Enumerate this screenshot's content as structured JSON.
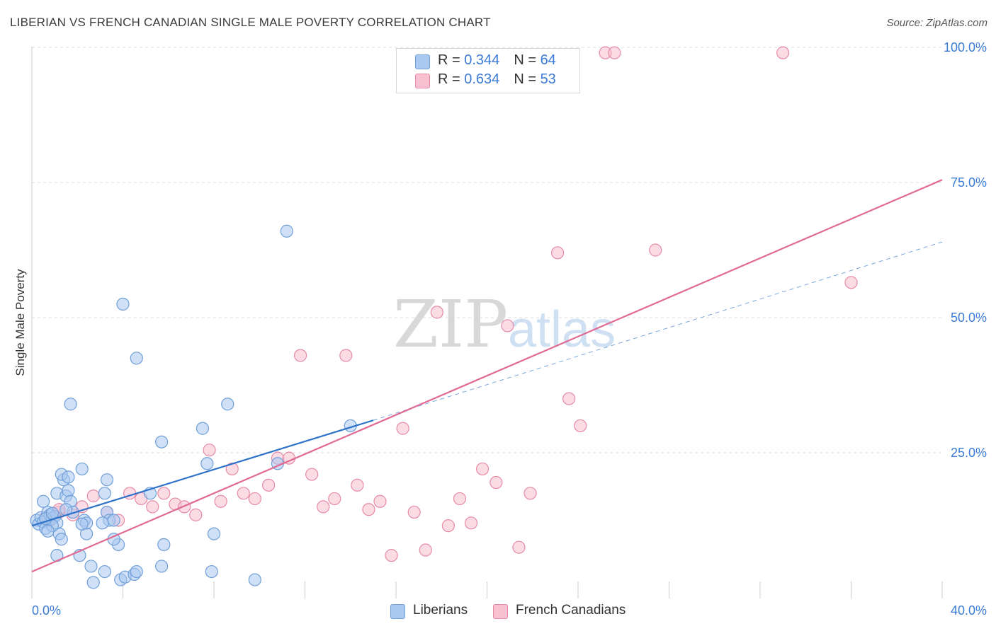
{
  "header": {
    "title": "LIBERIAN VS FRENCH CANADIAN SINGLE MALE POVERTY CORRELATION CHART",
    "source": "Source: ZipAtlas.com"
  },
  "legend_top": {
    "rows": [
      {
        "r_label": "R = ",
        "r_value": "0.344",
        "n_label": "N = ",
        "n_value": "64"
      },
      {
        "r_label": "R = ",
        "r_value": "0.634",
        "n_label": "N = ",
        "n_value": "53"
      }
    ]
  },
  "legend_bottom": {
    "liberians": "Liberians",
    "french_canadians": "French Canadians"
  },
  "watermark": {
    "zip": "ZIP",
    "atlas": "atlas"
  },
  "colors": {
    "liberians_fill": "#a9c9f0",
    "liberians_stroke": "#6f9fd8",
    "liberians_line": "#2f73c9",
    "french_fill": "#f8c0d0",
    "french_stroke": "#e58aa6",
    "french_line": "#e06a93",
    "tick_label": "#3a7bd5",
    "grid": "#dcdcdc"
  },
  "chart_data": {
    "type": "scatter",
    "title": "LIBERIAN VS FRENCH CANADIAN SINGLE MALE POVERTY CORRELATION CHART",
    "xlabel": "",
    "ylabel": "Single Male Poverty",
    "xlim": [
      0,
      40
    ],
    "ylim": [
      0,
      102
    ],
    "x_tick_labels": [
      "0.0%",
      "40.0%"
    ],
    "y_ticks": [
      25,
      50,
      75,
      100
    ],
    "y_tick_labels": [
      "25.0%",
      "50.0%",
      "75.0%",
      "100.0%"
    ],
    "grid": true,
    "legend_position": "top-center",
    "series": [
      {
        "name": "Liberians",
        "r": 0.344,
        "n": 64,
        "trend": {
          "x": [
            0,
            15
          ],
          "y": [
            11.5,
            31.0
          ]
        },
        "trend_dashed_extension": {
          "x": [
            15,
            40
          ],
          "y": [
            31.0,
            64.0
          ]
        },
        "points": [
          [
            0.2,
            12.5
          ],
          [
            0.3,
            11.8
          ],
          [
            0.4,
            13.0
          ],
          [
            0.5,
            12.2
          ],
          [
            0.6,
            11.0
          ],
          [
            0.7,
            14.0
          ],
          [
            0.8,
            13.5
          ],
          [
            0.9,
            12.8
          ],
          [
            1.0,
            13.2
          ],
          [
            1.1,
            12.0
          ],
          [
            1.2,
            10.0
          ],
          [
            1.3,
            9.0
          ],
          [
            0.5,
            16.0
          ],
          [
            1.1,
            17.5
          ],
          [
            1.4,
            20.0
          ],
          [
            1.5,
            17.0
          ],
          [
            1.6,
            18.0
          ],
          [
            1.7,
            16.0
          ],
          [
            1.8,
            14.0
          ],
          [
            1.3,
            21.0
          ],
          [
            1.6,
            20.5
          ],
          [
            2.2,
            22.0
          ],
          [
            2.3,
            12.5
          ],
          [
            2.4,
            10.0
          ],
          [
            2.1,
            6.0
          ],
          [
            1.1,
            6.0
          ],
          [
            2.6,
            4.0
          ],
          [
            2.7,
            1.0
          ],
          [
            3.2,
            17.5
          ],
          [
            3.3,
            14.0
          ],
          [
            3.4,
            12.5
          ],
          [
            3.1,
            12.0
          ],
          [
            3.2,
            3.0
          ],
          [
            3.9,
            1.5
          ],
          [
            4.1,
            2.0
          ],
          [
            4.5,
            2.5
          ],
          [
            3.8,
            8.0
          ],
          [
            3.6,
            9.0
          ],
          [
            3.3,
            20.0
          ],
          [
            1.7,
            34.0
          ],
          [
            4.0,
            52.5
          ],
          [
            4.6,
            42.5
          ],
          [
            5.2,
            17.5
          ],
          [
            5.7,
            27.0
          ],
          [
            5.8,
            8.0
          ],
          [
            5.7,
            4.0
          ],
          [
            7.5,
            29.5
          ],
          [
            7.7,
            23.0
          ],
          [
            7.9,
            3.0
          ],
          [
            8.0,
            10.0
          ],
          [
            8.6,
            34.0
          ],
          [
            9.8,
            1.5
          ],
          [
            10.8,
            23.0
          ],
          [
            11.2,
            66.0
          ],
          [
            14.0,
            30.0
          ],
          [
            0.9,
            11.5
          ],
          [
            0.6,
            12.8
          ],
          [
            2.4,
            12.0
          ],
          [
            1.5,
            14.5
          ],
          [
            2.2,
            11.8
          ],
          [
            0.7,
            10.5
          ],
          [
            0.9,
            13.8
          ],
          [
            3.6,
            12.5
          ],
          [
            4.6,
            3.0
          ]
        ]
      },
      {
        "name": "French Canadians",
        "r": 0.634,
        "n": 53,
        "trend": {
          "x": [
            0,
            40
          ],
          "y": [
            3.0,
            75.5
          ]
        },
        "points": [
          [
            0.6,
            13.0
          ],
          [
            0.8,
            12.5
          ],
          [
            1.2,
            14.0
          ],
          [
            1.8,
            13.5
          ],
          [
            2.2,
            15.0
          ],
          [
            2.7,
            17.0
          ],
          [
            3.3,
            14.0
          ],
          [
            3.8,
            12.5
          ],
          [
            4.3,
            17.5
          ],
          [
            4.8,
            16.5
          ],
          [
            5.3,
            15.0
          ],
          [
            5.8,
            17.5
          ],
          [
            6.3,
            15.5
          ],
          [
            6.7,
            15.0
          ],
          [
            7.2,
            13.5
          ],
          [
            7.8,
            25.5
          ],
          [
            8.3,
            16.0
          ],
          [
            8.8,
            22.0
          ],
          [
            9.3,
            17.5
          ],
          [
            9.8,
            16.5
          ],
          [
            10.4,
            19.0
          ],
          [
            10.8,
            24.0
          ],
          [
            11.3,
            24.0
          ],
          [
            11.8,
            43.0
          ],
          [
            12.3,
            21.0
          ],
          [
            12.8,
            15.0
          ],
          [
            13.3,
            16.5
          ],
          [
            13.8,
            43.0
          ],
          [
            14.3,
            19.0
          ],
          [
            14.8,
            14.5
          ],
          [
            15.3,
            16.0
          ],
          [
            15.8,
            6.0
          ],
          [
            16.3,
            29.5
          ],
          [
            16.8,
            14.0
          ],
          [
            17.3,
            7.0
          ],
          [
            17.8,
            51.0
          ],
          [
            18.3,
            11.5
          ],
          [
            18.8,
            16.5
          ],
          [
            19.3,
            12.0
          ],
          [
            19.8,
            22.0
          ],
          [
            20.4,
            19.5
          ],
          [
            20.9,
            48.5
          ],
          [
            21.4,
            7.5
          ],
          [
            21.9,
            17.5
          ],
          [
            23.1,
            62.0
          ],
          [
            23.6,
            35.0
          ],
          [
            24.1,
            30.0
          ],
          [
            25.2,
            99.0
          ],
          [
            25.6,
            99.0
          ],
          [
            27.4,
            62.5
          ],
          [
            33.0,
            99.0
          ],
          [
            36.0,
            56.5
          ],
          [
            1.2,
            14.5
          ]
        ]
      }
    ]
  }
}
